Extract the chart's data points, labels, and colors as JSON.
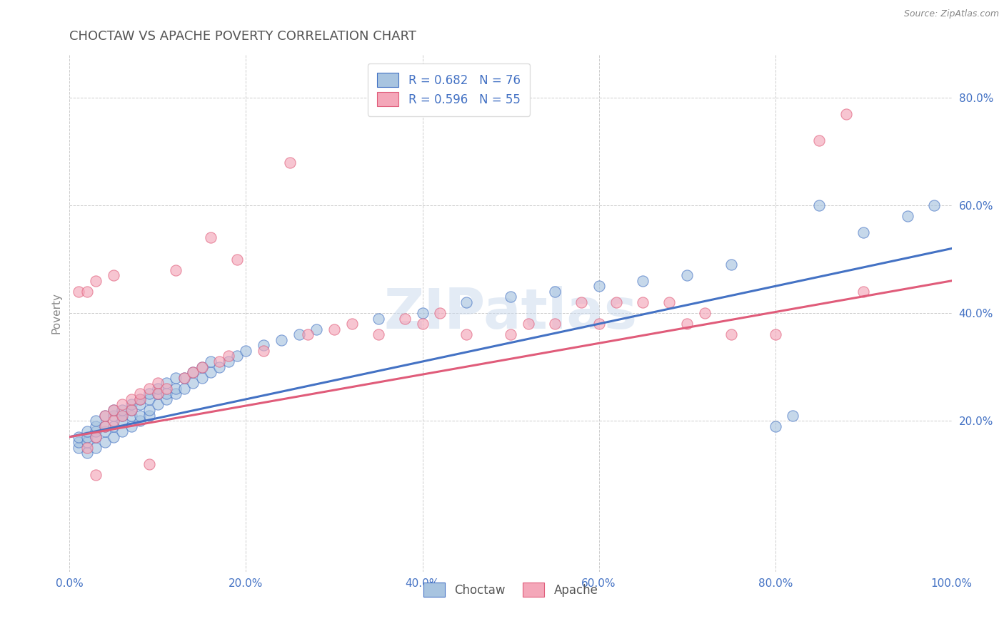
{
  "title": "CHOCTAW VS APACHE POVERTY CORRELATION CHART",
  "source": "Source: ZipAtlas.com",
  "ylabel": "Poverty",
  "xlim": [
    0,
    1.0
  ],
  "ylim": [
    -0.08,
    0.88
  ],
  "xticks": [
    0.0,
    0.2,
    0.4,
    0.6,
    0.8,
    1.0
  ],
  "xticklabels": [
    "0.0%",
    "20.0%",
    "40.0%",
    "60.0%",
    "80.0%",
    "100.0%"
  ],
  "yticks": [
    0.2,
    0.4,
    0.6,
    0.8
  ],
  "yticklabels": [
    "20.0%",
    "40.0%",
    "60.0%",
    "80.0%"
  ],
  "choctaw_color": "#a8c4e0",
  "apache_color": "#f4a7b9",
  "choctaw_line_color": "#4472c4",
  "apache_line_color": "#e05c7a",
  "choctaw_R": 0.682,
  "choctaw_N": 76,
  "apache_R": 0.596,
  "apache_N": 55,
  "legend_label_choctaw": "Choctaw",
  "legend_label_apache": "Apache",
  "watermark": "ZIPatlas",
  "background_color": "#ffffff",
  "grid_color": "#cccccc",
  "title_color": "#555555",
  "choctaw_line_intercept": 0.17,
  "choctaw_line_slope": 0.35,
  "apache_line_intercept": 0.17,
  "apache_line_slope": 0.29,
  "choctaw_scatter": [
    [
      0.01,
      0.15
    ],
    [
      0.01,
      0.16
    ],
    [
      0.01,
      0.17
    ],
    [
      0.02,
      0.14
    ],
    [
      0.02,
      0.16
    ],
    [
      0.02,
      0.17
    ],
    [
      0.02,
      0.18
    ],
    [
      0.03,
      0.15
    ],
    [
      0.03,
      0.17
    ],
    [
      0.03,
      0.18
    ],
    [
      0.03,
      0.19
    ],
    [
      0.03,
      0.2
    ],
    [
      0.04,
      0.16
    ],
    [
      0.04,
      0.18
    ],
    [
      0.04,
      0.19
    ],
    [
      0.04,
      0.21
    ],
    [
      0.05,
      0.17
    ],
    [
      0.05,
      0.19
    ],
    [
      0.05,
      0.21
    ],
    [
      0.05,
      0.22
    ],
    [
      0.06,
      0.18
    ],
    [
      0.06,
      0.2
    ],
    [
      0.06,
      0.21
    ],
    [
      0.06,
      0.22
    ],
    [
      0.07,
      0.19
    ],
    [
      0.07,
      0.21
    ],
    [
      0.07,
      0.22
    ],
    [
      0.07,
      0.23
    ],
    [
      0.08,
      0.2
    ],
    [
      0.08,
      0.21
    ],
    [
      0.08,
      0.23
    ],
    [
      0.08,
      0.24
    ],
    [
      0.09,
      0.21
    ],
    [
      0.09,
      0.22
    ],
    [
      0.09,
      0.24
    ],
    [
      0.09,
      0.25
    ],
    [
      0.1,
      0.23
    ],
    [
      0.1,
      0.25
    ],
    [
      0.1,
      0.26
    ],
    [
      0.11,
      0.24
    ],
    [
      0.11,
      0.25
    ],
    [
      0.11,
      0.27
    ],
    [
      0.12,
      0.25
    ],
    [
      0.12,
      0.26
    ],
    [
      0.12,
      0.28
    ],
    [
      0.13,
      0.26
    ],
    [
      0.13,
      0.28
    ],
    [
      0.14,
      0.27
    ],
    [
      0.14,
      0.29
    ],
    [
      0.15,
      0.28
    ],
    [
      0.15,
      0.3
    ],
    [
      0.16,
      0.29
    ],
    [
      0.16,
      0.31
    ],
    [
      0.17,
      0.3
    ],
    [
      0.18,
      0.31
    ],
    [
      0.19,
      0.32
    ],
    [
      0.2,
      0.33
    ],
    [
      0.22,
      0.34
    ],
    [
      0.24,
      0.35
    ],
    [
      0.26,
      0.36
    ],
    [
      0.28,
      0.37
    ],
    [
      0.35,
      0.39
    ],
    [
      0.4,
      0.4
    ],
    [
      0.45,
      0.42
    ],
    [
      0.5,
      0.43
    ],
    [
      0.55,
      0.44
    ],
    [
      0.6,
      0.45
    ],
    [
      0.65,
      0.46
    ],
    [
      0.7,
      0.47
    ],
    [
      0.75,
      0.49
    ],
    [
      0.8,
      0.19
    ],
    [
      0.82,
      0.21
    ],
    [
      0.85,
      0.6
    ],
    [
      0.9,
      0.55
    ],
    [
      0.95,
      0.58
    ],
    [
      0.98,
      0.6
    ]
  ],
  "apache_scatter": [
    [
      0.01,
      0.44
    ],
    [
      0.02,
      0.15
    ],
    [
      0.02,
      0.44
    ],
    [
      0.03,
      0.1
    ],
    [
      0.03,
      0.17
    ],
    [
      0.03,
      0.46
    ],
    [
      0.04,
      0.19
    ],
    [
      0.04,
      0.21
    ],
    [
      0.05,
      0.2
    ],
    [
      0.05,
      0.22
    ],
    [
      0.05,
      0.47
    ],
    [
      0.06,
      0.21
    ],
    [
      0.06,
      0.23
    ],
    [
      0.07,
      0.22
    ],
    [
      0.07,
      0.24
    ],
    [
      0.08,
      0.24
    ],
    [
      0.08,
      0.25
    ],
    [
      0.09,
      0.12
    ],
    [
      0.09,
      0.26
    ],
    [
      0.1,
      0.25
    ],
    [
      0.1,
      0.27
    ],
    [
      0.11,
      0.26
    ],
    [
      0.12,
      0.48
    ],
    [
      0.13,
      0.28
    ],
    [
      0.14,
      0.29
    ],
    [
      0.15,
      0.3
    ],
    [
      0.16,
      0.54
    ],
    [
      0.17,
      0.31
    ],
    [
      0.18,
      0.32
    ],
    [
      0.19,
      0.5
    ],
    [
      0.22,
      0.33
    ],
    [
      0.25,
      0.68
    ],
    [
      0.27,
      0.36
    ],
    [
      0.3,
      0.37
    ],
    [
      0.32,
      0.38
    ],
    [
      0.35,
      0.36
    ],
    [
      0.38,
      0.39
    ],
    [
      0.4,
      0.38
    ],
    [
      0.42,
      0.4
    ],
    [
      0.45,
      0.36
    ],
    [
      0.5,
      0.36
    ],
    [
      0.52,
      0.38
    ],
    [
      0.55,
      0.38
    ],
    [
      0.58,
      0.42
    ],
    [
      0.6,
      0.38
    ],
    [
      0.62,
      0.42
    ],
    [
      0.65,
      0.42
    ],
    [
      0.68,
      0.42
    ],
    [
      0.7,
      0.38
    ],
    [
      0.72,
      0.4
    ],
    [
      0.75,
      0.36
    ],
    [
      0.8,
      0.36
    ],
    [
      0.85,
      0.72
    ],
    [
      0.88,
      0.77
    ],
    [
      0.9,
      0.44
    ]
  ]
}
